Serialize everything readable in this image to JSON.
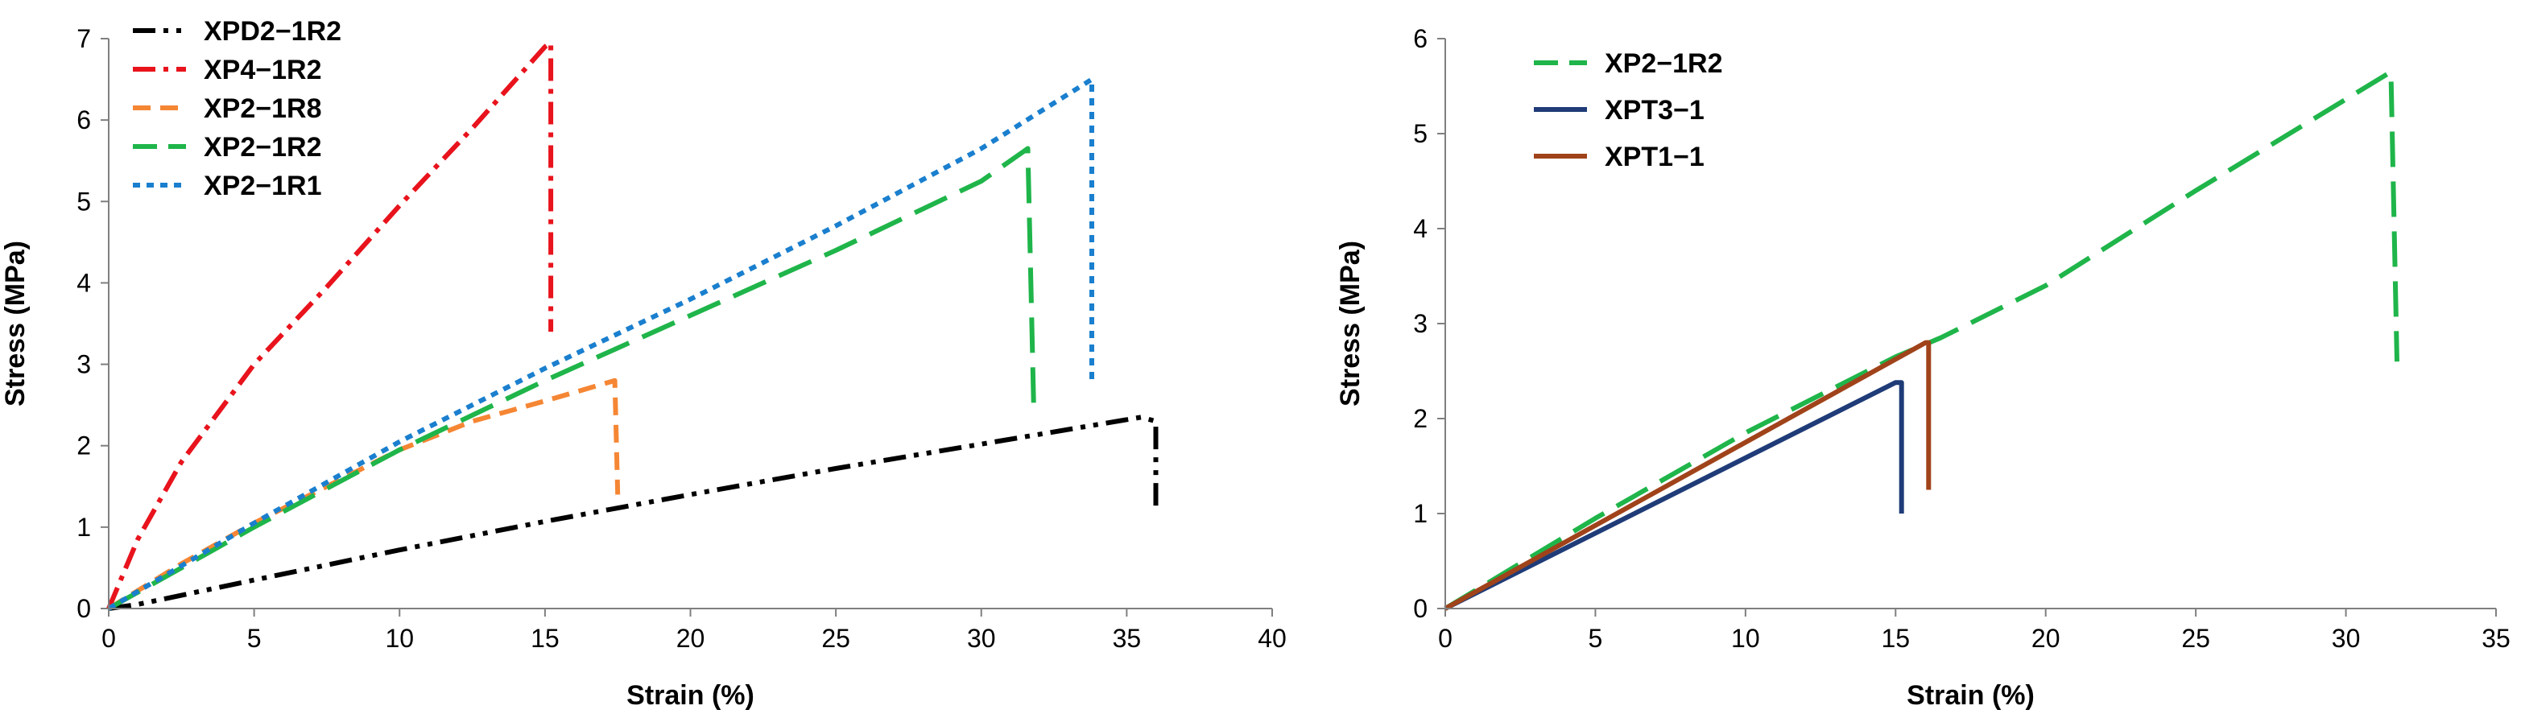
{
  "chart_data": [
    {
      "type": "line",
      "title": "",
      "xlabel": "Strain (%)",
      "ylabel": "Stress (MPa)",
      "xlim": [
        0,
        40
      ],
      "ylim": [
        0,
        7
      ],
      "xticks": [
        "0",
        "5",
        "10",
        "15",
        "20",
        "25",
        "30",
        "35",
        "40"
      ],
      "yticks": [
        "0",
        "1",
        "2",
        "3",
        "4",
        "5",
        "6",
        "7"
      ],
      "legend_position": "top-left",
      "series": [
        {
          "name": "XPD2−1R2",
          "color": "#000000",
          "style": "dashdotdot",
          "points": [
            [
              0,
              0
            ],
            [
              1,
              0.05
            ],
            [
              5,
              0.35
            ],
            [
              10,
              0.72
            ],
            [
              15,
              1.07
            ],
            [
              20,
              1.4
            ],
            [
              25,
              1.72
            ],
            [
              30,
              2.02
            ],
            [
              35.5,
              2.35
            ],
            [
              36,
              2.3
            ],
            [
              36,
              1.2
            ]
          ]
        },
        {
          "name": "XP4−1R2",
          "color": "#e8131c",
          "style": "dashdot",
          "points": [
            [
              0,
              0
            ],
            [
              1,
              0.85
            ],
            [
              2.5,
              1.8
            ],
            [
              5,
              3.0
            ],
            [
              7.5,
              3.95
            ],
            [
              10,
              4.95
            ],
            [
              12.5,
              5.9
            ],
            [
              15,
              6.9
            ],
            [
              15.2,
              6.95
            ],
            [
              15.2,
              3.4
            ]
          ]
        },
        {
          "name": "XP2−1R8",
          "color": "#f58634",
          "style": "dash",
          "points": [
            [
              0,
              0
            ],
            [
              2.5,
              0.55
            ],
            [
              5,
              1.05
            ],
            [
              7.5,
              1.5
            ],
            [
              10,
              1.95
            ],
            [
              12.5,
              2.3
            ],
            [
              15,
              2.55
            ],
            [
              17.4,
              2.8
            ],
            [
              17.5,
              1.4
            ]
          ]
        },
        {
          "name": "XP2−1R2",
          "color": "#1fb54a",
          "style": "longdash",
          "points": [
            [
              0,
              0
            ],
            [
              5,
              1.0
            ],
            [
              10,
              1.95
            ],
            [
              15,
              2.8
            ],
            [
              20,
              3.6
            ],
            [
              25,
              4.4
            ],
            [
              30,
              5.25
            ],
            [
              31.6,
              5.65
            ],
            [
              31.8,
              2.5
            ]
          ]
        },
        {
          "name": "XP2−1R1",
          "color": "#1a7fce",
          "style": "dot",
          "points": [
            [
              0,
              0
            ],
            [
              5,
              1.05
            ],
            [
              10,
              2.05
            ],
            [
              15,
              2.95
            ],
            [
              20,
              3.8
            ],
            [
              25,
              4.7
            ],
            [
              30,
              5.65
            ],
            [
              33.8,
              6.5
            ],
            [
              33.8,
              2.8
            ]
          ]
        }
      ]
    },
    {
      "type": "line",
      "title": "",
      "xlabel": "Strain (%)",
      "ylabel": "Stress (MPa)",
      "xlim": [
        0,
        35
      ],
      "ylim": [
        0,
        6
      ],
      "xticks": [
        "0",
        "5",
        "10",
        "15",
        "20",
        "25",
        "30",
        "35"
      ],
      "yticks": [
        "0",
        "1",
        "2",
        "3",
        "4",
        "5",
        "6"
      ],
      "legend_position": "top-left",
      "series": [
        {
          "name": "XP2−1R2",
          "color": "#1fb54a",
          "style": "longdash",
          "points": [
            [
              0,
              0
            ],
            [
              5,
              0.95
            ],
            [
              10,
              1.85
            ],
            [
              15,
              2.65
            ],
            [
              16.5,
              2.85
            ],
            [
              20,
              3.4
            ],
            [
              25,
              4.4
            ],
            [
              31.5,
              5.65
            ],
            [
              31.7,
              2.6
            ]
          ]
        },
        {
          "name": "XPT3−1",
          "color": "#1f3c78",
          "style": "solid",
          "points": [
            [
              0,
              0
            ],
            [
              15,
              2.38
            ],
            [
              15.2,
              2.38
            ],
            [
              15.2,
              1.0
            ]
          ]
        },
        {
          "name": "XPT1−1",
          "color": "#a0431a",
          "style": "solid",
          "points": [
            [
              0,
              0
            ],
            [
              16,
              2.8
            ],
            [
              16.1,
              2.8
            ],
            [
              16.1,
              1.25
            ]
          ]
        }
      ]
    }
  ]
}
